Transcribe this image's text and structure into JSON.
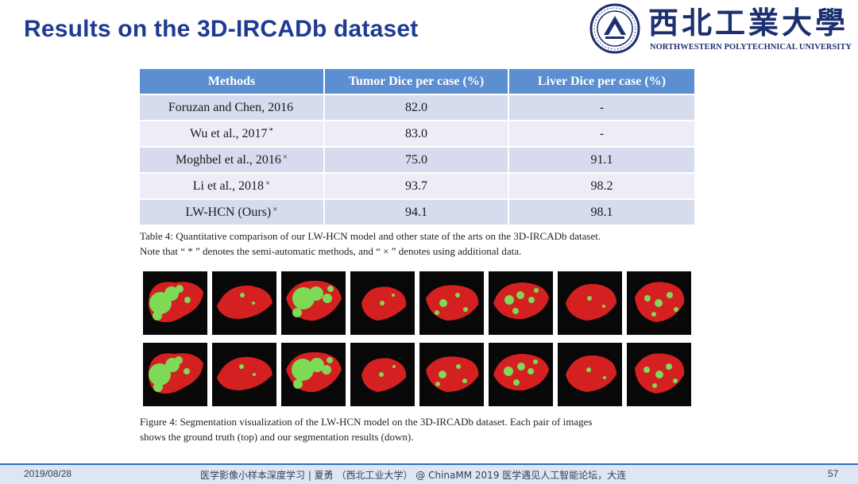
{
  "slide": {
    "title": "Results on the 3D-IRCADb dataset"
  },
  "logo": {
    "name_cn": "西北工業大學",
    "name_en": "NORTHWESTERN POLYTECHNICAL UNIVERSITY"
  },
  "table": {
    "headers": [
      "Methods",
      "Tumor Dice per case (%)",
      "Liver Dice per case (%)"
    ],
    "rows": [
      {
        "method": "Foruzan and Chen, 2016",
        "mark": "",
        "tumor": "82.0",
        "liver": "-"
      },
      {
        "method": "Wu et al., 2017",
        "mark": "*",
        "tumor": "83.0",
        "liver": "-"
      },
      {
        "method": "Moghbel et al., 2016",
        "mark": "×",
        "tumor": "75.0",
        "liver": "91.1"
      },
      {
        "method": "Li et al., 2018",
        "mark": "×",
        "tumor": "93.7",
        "liver": "98.2"
      },
      {
        "method": "LW-HCN (Ours)",
        "mark": "×",
        "tumor": "94.1",
        "liver": "98.1"
      }
    ],
    "caption_line1": "Table 4: Quantitative comparison of our LW-HCN model and other state of the arts on the 3D-IRCADb dataset.",
    "caption_line2": "Note that “ * ” denotes the semi-automatic methods, and “ × ” denotes using additional data."
  },
  "figure": {
    "caption_line1": "Figure 4: Segmentation visualization of the LW-HCN model on the 3D-IRCADb dataset. Each pair of images",
    "caption_line2": "shows the ground truth (top) and our segmentation results (down).",
    "colors": {
      "liver": "#d42020",
      "tumor": "#7ed957",
      "background": "#080808"
    }
  },
  "footer": {
    "date": "2019/08/28",
    "center": "医学影像小样本深度学习 | 夏勇 （西北工业大学） @ ChinaMM 2019 医学遇见人工智能论坛，大连",
    "page": "57"
  }
}
